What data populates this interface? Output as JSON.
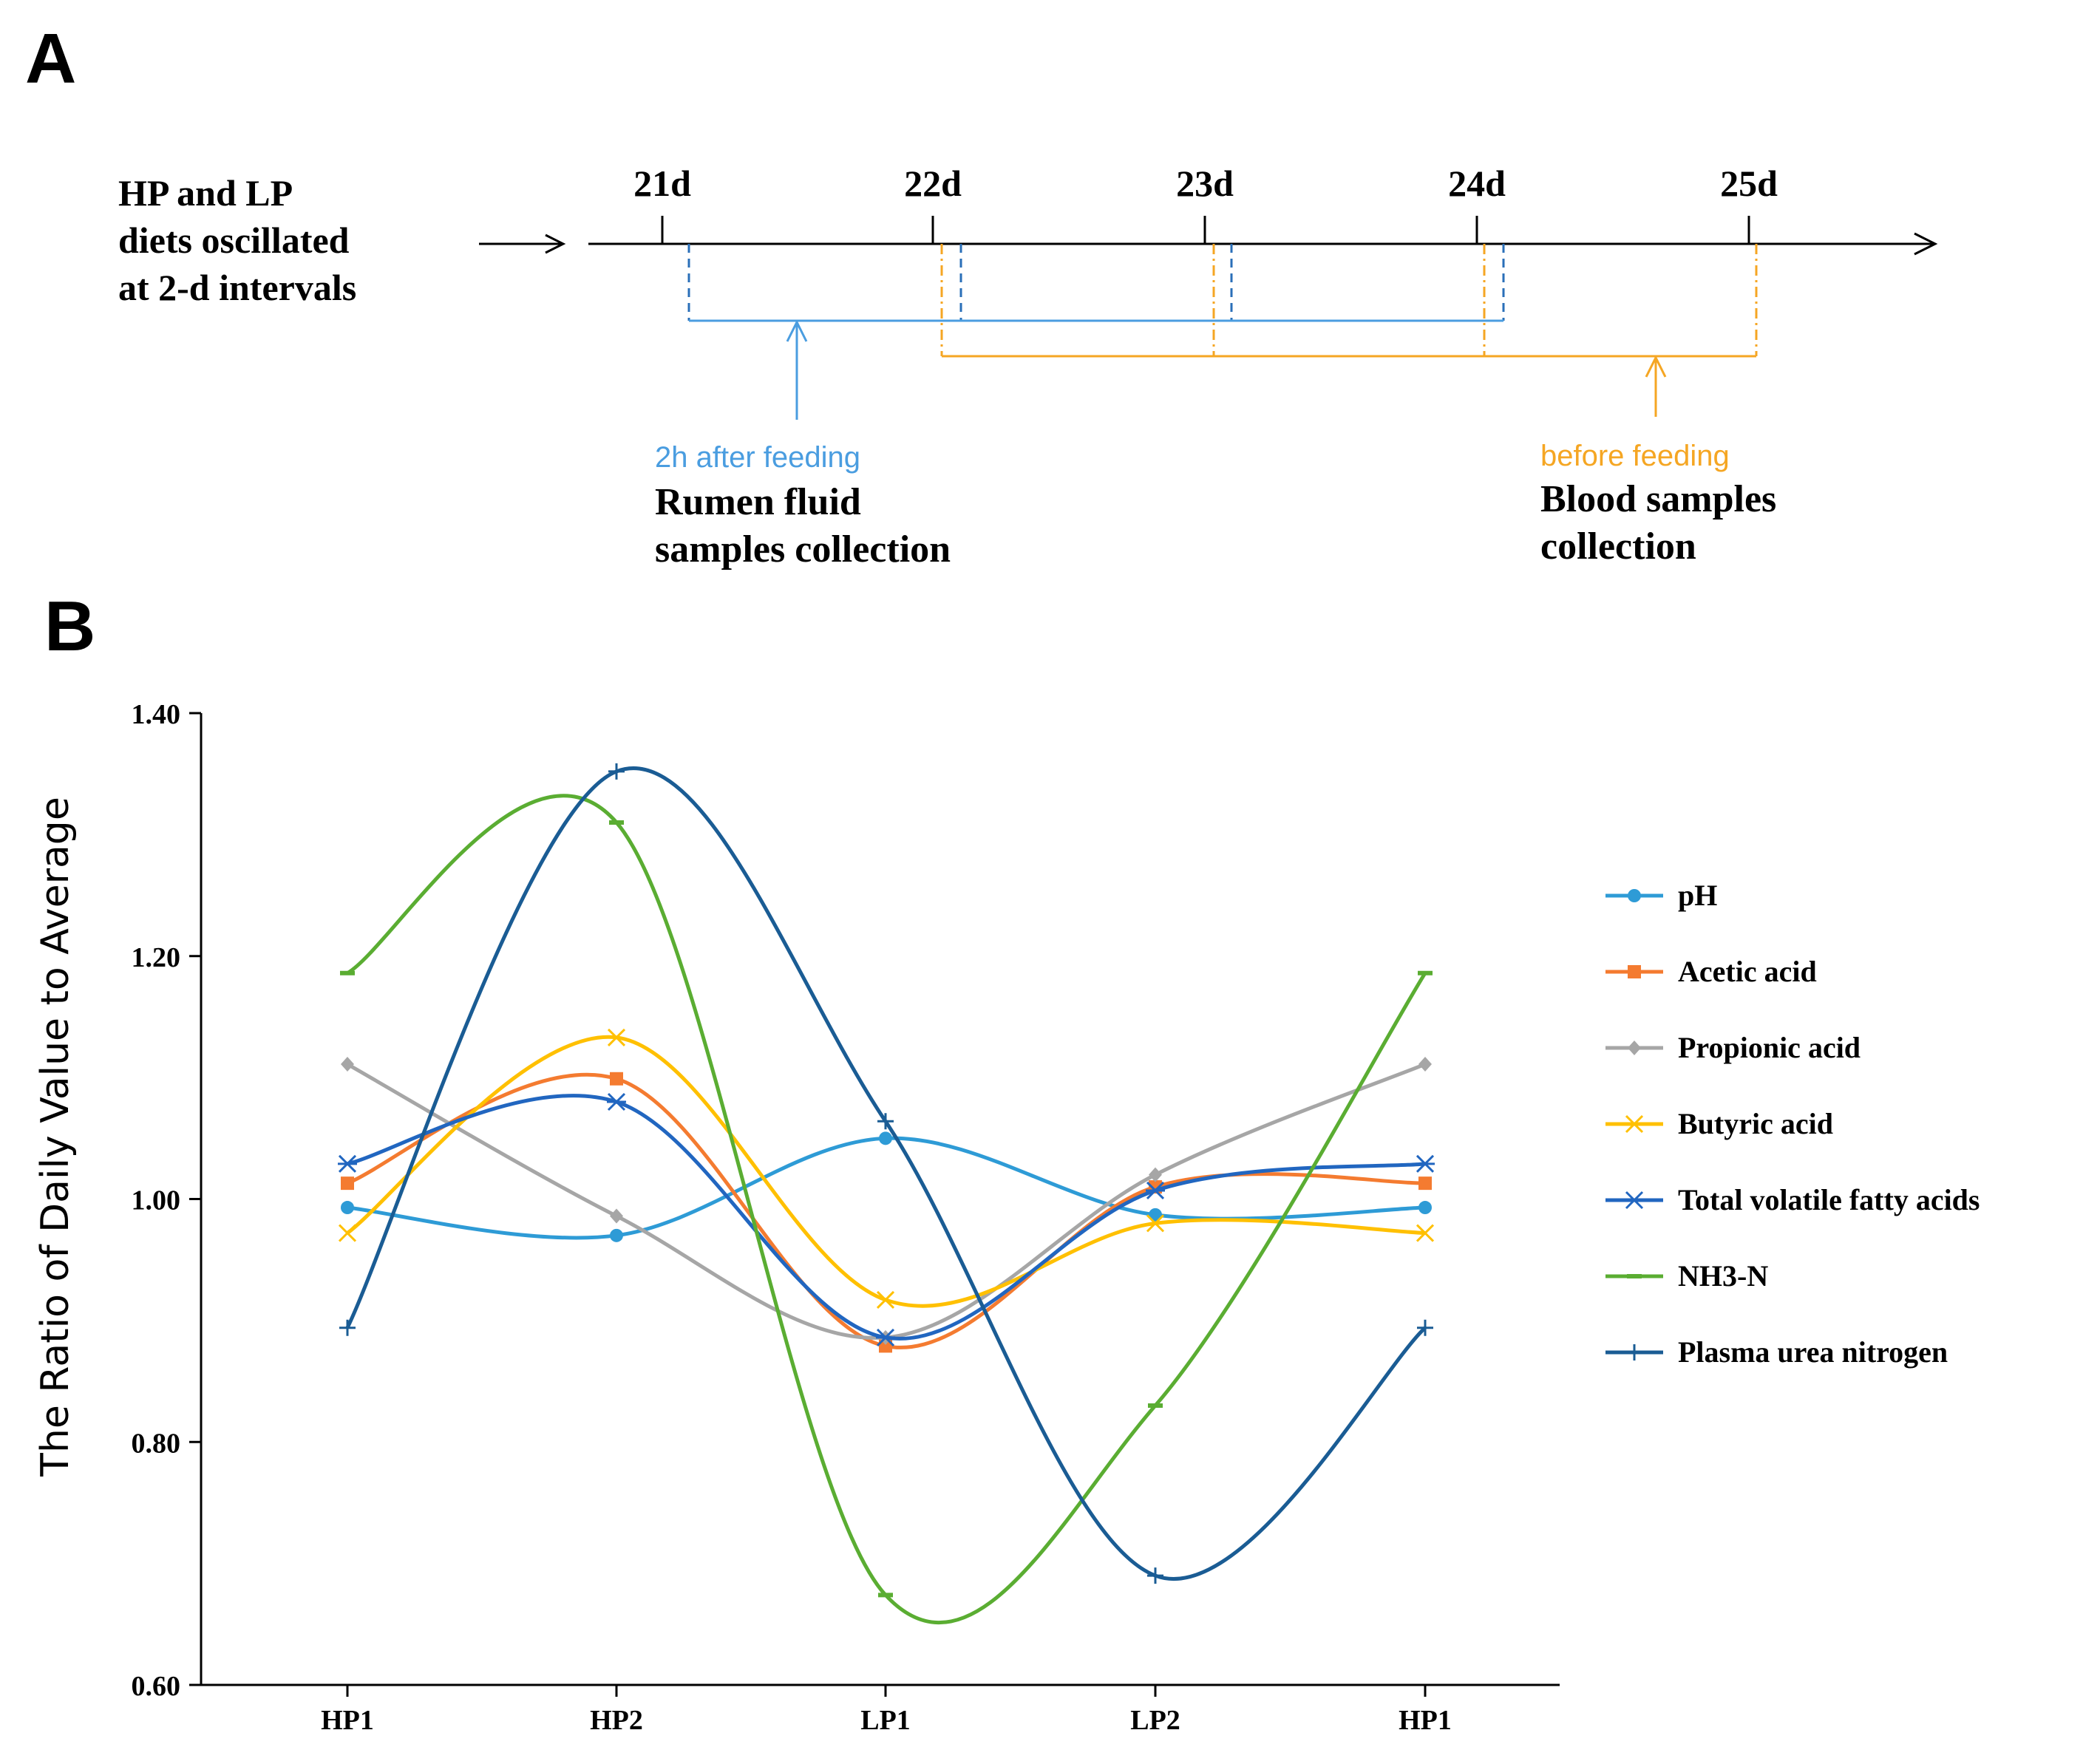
{
  "panel_a": {
    "label": "A",
    "intro_lines": [
      "HP and LP",
      "diets oscillated",
      "at 2-d intervals"
    ],
    "days": [
      "21d",
      "22d",
      "23d",
      "24d",
      "25d"
    ],
    "rumen": {
      "note": "2h after feeding",
      "title_lines": [
        "Rumen fluid",
        "samples collection"
      ],
      "color": "#4a9de0",
      "tick_color": "#2a6fb8"
    },
    "blood": {
      "note": "before feeding",
      "title_lines": [
        "Blood samples",
        "collection"
      ],
      "color": "#f5a623"
    }
  },
  "panel_b": {
    "label": "B"
  },
  "chart_data": {
    "type": "line",
    "title": "",
    "xlabel": "",
    "ylabel": "The Ratio of Daily Value to Average",
    "categories": [
      "HP1",
      "HP2",
      "LP1",
      "LP2",
      "HP1"
    ],
    "ylim": [
      0.6,
      1.4
    ],
    "yticks": [
      0.6,
      0.8,
      1.0,
      1.2,
      1.4
    ],
    "ytick_labels": [
      "0.60",
      "0.80",
      "1.00",
      "1.20",
      "1.40"
    ],
    "legend_position": "right",
    "series": [
      {
        "name": "pH",
        "color": "#2e9bd6",
        "marker": "circle",
        "values": [
          0.993,
          0.97,
          1.05,
          0.987,
          0.993
        ]
      },
      {
        "name": "Acetic acid",
        "color": "#f47b30",
        "marker": "square",
        "values": [
          1.013,
          1.099,
          0.879,
          1.01,
          1.013
        ]
      },
      {
        "name": "Propionic acid",
        "color": "#a6a6a6",
        "marker": "diamond",
        "values": [
          1.111,
          0.986,
          0.886,
          1.02,
          1.111
        ]
      },
      {
        "name": "Butyric acid",
        "color": "#ffc000",
        "marker": "x",
        "values": [
          0.972,
          1.133,
          0.917,
          0.98,
          0.972
        ]
      },
      {
        "name": "Total volatile fatty acids",
        "color": "#2166c0",
        "marker": "star",
        "values": [
          1.029,
          1.08,
          0.886,
          1.007,
          1.029
        ]
      },
      {
        "name": "NH3-N",
        "color": "#5aad32",
        "marker": "dash",
        "values": [
          1.186,
          1.31,
          0.674,
          0.83,
          1.186
        ]
      },
      {
        "name": "Plasma urea nitrogen",
        "color": "#1a5c94",
        "marker": "plus",
        "values": [
          0.894,
          1.352,
          1.064,
          0.69,
          0.894
        ]
      }
    ]
  }
}
